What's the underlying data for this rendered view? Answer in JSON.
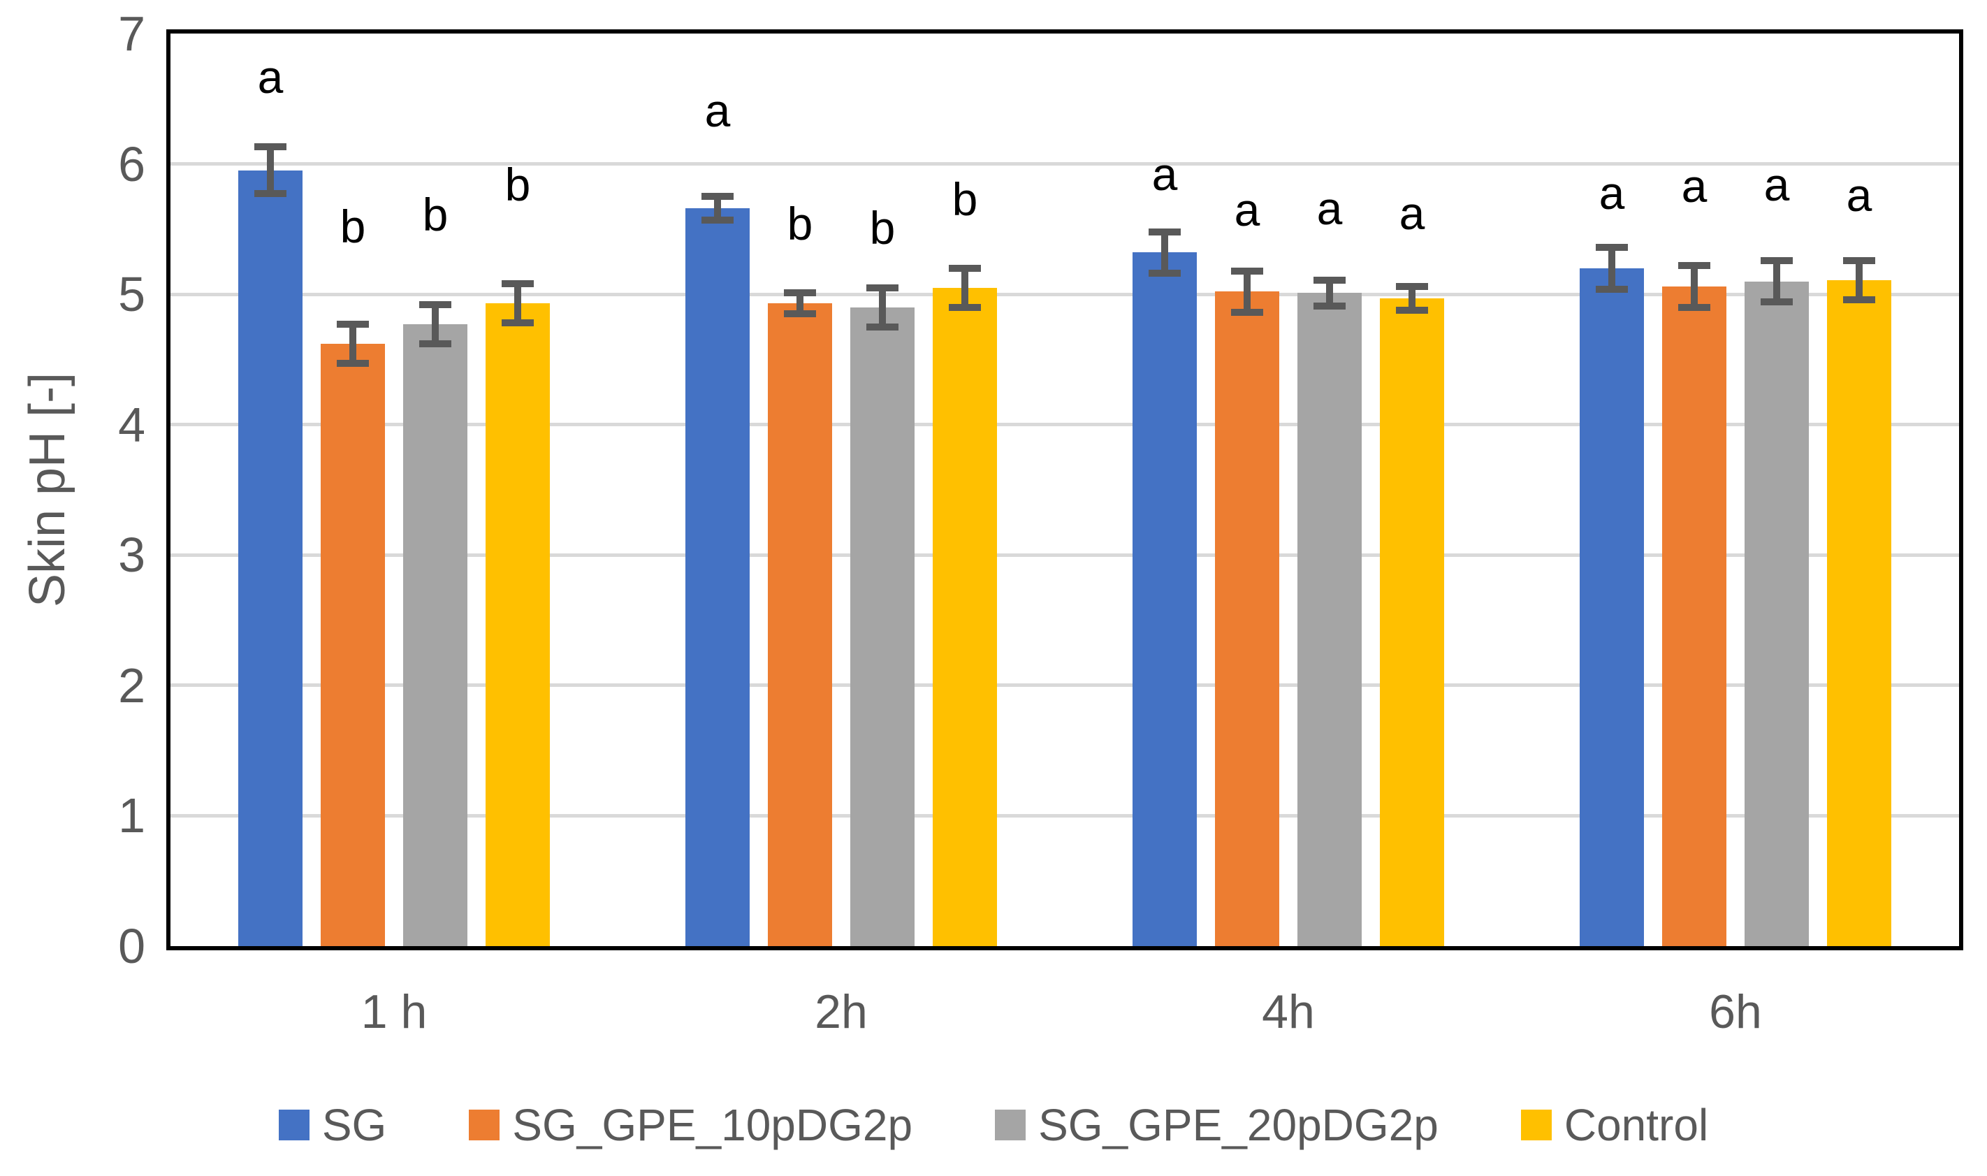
{
  "figure": {
    "kind": "excel-style grouped bar chart with error bars and significance letters"
  },
  "chart_data": {
    "type": "bar",
    "title": "",
    "xlabel": "",
    "ylabel": "Skin pH [-]",
    "ylim": [
      0,
      7
    ],
    "yticks": [
      0,
      1,
      2,
      3,
      4,
      5,
      6,
      7
    ],
    "grid": "horizontal",
    "legend_position": "bottom",
    "categories": [
      "1 h",
      "2h",
      "4h",
      "6h"
    ],
    "series": [
      {
        "name": "SG",
        "color": "#4472C4",
        "values": [
          5.95,
          5.66,
          5.32,
          5.2
        ],
        "errors": [
          0.18,
          0.09,
          0.16,
          0.16
        ],
        "letters": [
          "a",
          "a",
          "a",
          "a"
        ],
        "letter_y": [
          6.67,
          6.41,
          5.92,
          5.78
        ]
      },
      {
        "name": "SG_GPE_10pDG2p",
        "color": "#ED7D31",
        "values": [
          4.62,
          4.93,
          5.02,
          5.06
        ],
        "errors": [
          0.15,
          0.08,
          0.16,
          0.16
        ],
        "letters": [
          "b",
          "b",
          "a",
          "a"
        ],
        "letter_y": [
          5.52,
          5.54,
          5.65,
          5.83
        ]
      },
      {
        "name": "SG_GPE_20pDG2p",
        "color": "#A5A5A5",
        "values": [
          4.77,
          4.9,
          5.01,
          5.1
        ],
        "errors": [
          0.15,
          0.15,
          0.1,
          0.16
        ],
        "letters": [
          "b",
          "b",
          "a",
          "a"
        ],
        "letter_y": [
          5.61,
          5.51,
          5.66,
          5.84
        ]
      },
      {
        "name": "Control",
        "color": "#FFC000",
        "values": [
          4.93,
          5.05,
          4.97,
          5.11
        ],
        "errors": [
          0.15,
          0.15,
          0.09,
          0.15
        ],
        "letters": [
          "b",
          "b",
          "a",
          "a"
        ],
        "letter_y": [
          5.84,
          5.73,
          5.62,
          5.76
        ]
      }
    ],
    "colors": {
      "error_bar": "#595959",
      "axis_text": "#595959",
      "gridline": "#D9D9D9",
      "plot_border": "#000000",
      "annotation": "#000000"
    }
  }
}
